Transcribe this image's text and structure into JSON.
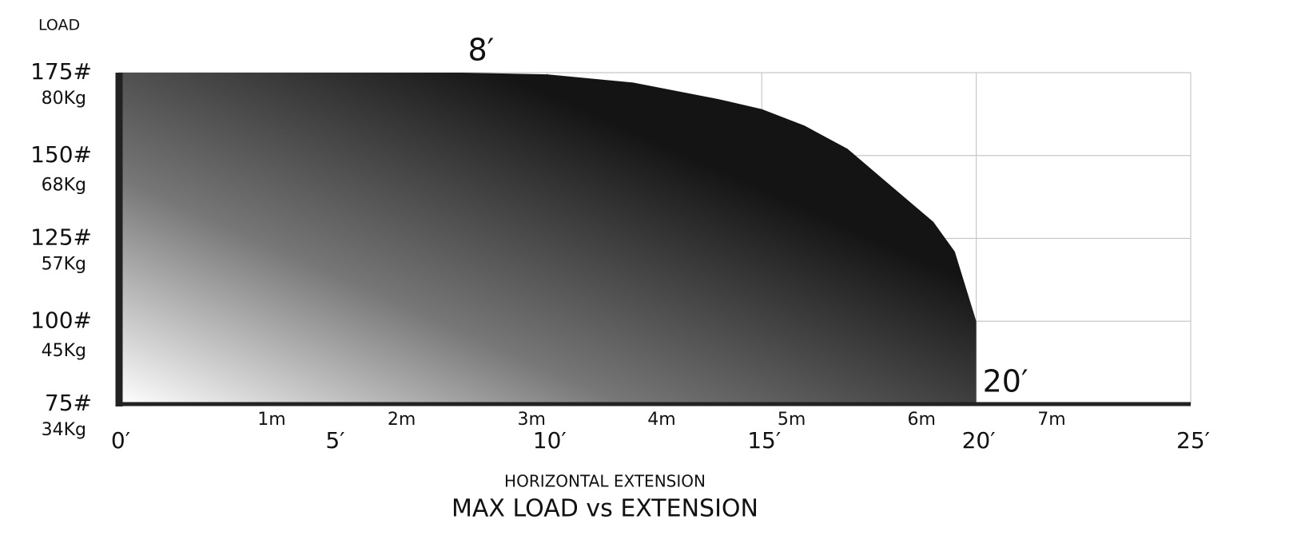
{
  "chart_data": {
    "type": "area",
    "title": "MAX LOAD vs EXTENSION",
    "xlabel": "HORIZONTAL EXTENSION",
    "ylabel": "LOAD",
    "x": [
      0,
      8,
      10,
      12,
      14,
      15,
      16,
      17,
      18,
      19,
      19.5,
      20,
      20
    ],
    "series": [
      {
        "color": "#141414",
        "values": [
          175,
          175,
          174.5,
          172,
          167,
          164,
          159,
          152,
          141,
          130,
          121,
          100,
          75
        ]
      }
    ],
    "xlim": [
      0,
      25
    ],
    "xticks": [
      {
        "value": 0,
        "label": "0′"
      },
      {
        "value": 5,
        "label": "5′"
      },
      {
        "value": 10,
        "label": "10′"
      },
      {
        "value": 15,
        "label": "15′"
      },
      {
        "value": 20,
        "label": "20′"
      },
      {
        "value": 25,
        "label": "25′"
      }
    ],
    "x2lim": [
      -0.18,
      8.07
    ],
    "x2ticks": [
      {
        "value": 1,
        "label": "1m"
      },
      {
        "value": 2,
        "label": "2m"
      },
      {
        "value": 3,
        "label": "3m"
      },
      {
        "value": 4,
        "label": "4m"
      },
      {
        "value": 5,
        "label": "5m"
      },
      {
        "value": 6,
        "label": "6m"
      },
      {
        "value": 7,
        "label": "7m"
      }
    ],
    "ylim": [
      75,
      175
    ],
    "yticks": [
      {
        "value": 75,
        "label": "75#"
      },
      {
        "value": 100,
        "label": "100#"
      },
      {
        "value": 125,
        "label": "125#"
      },
      {
        "value": 150,
        "label": "150#"
      },
      {
        "value": 175,
        "label": "175#"
      }
    ],
    "y2lim": [
      34,
      80
    ],
    "y2ticks": [
      {
        "value": 34,
        "label": "34Kg"
      },
      {
        "value": 45,
        "label": "45Kg"
      },
      {
        "value": 57,
        "label": "57Kg"
      },
      {
        "value": 68,
        "label": "68Kg"
      },
      {
        "value": 80,
        "label": "80Kg"
      }
    ],
    "annotations": [
      {
        "text": "8′",
        "x": 8,
        "y": 175
      },
      {
        "text": "20′",
        "x": 20,
        "y": 75
      }
    ],
    "grid": true
  }
}
